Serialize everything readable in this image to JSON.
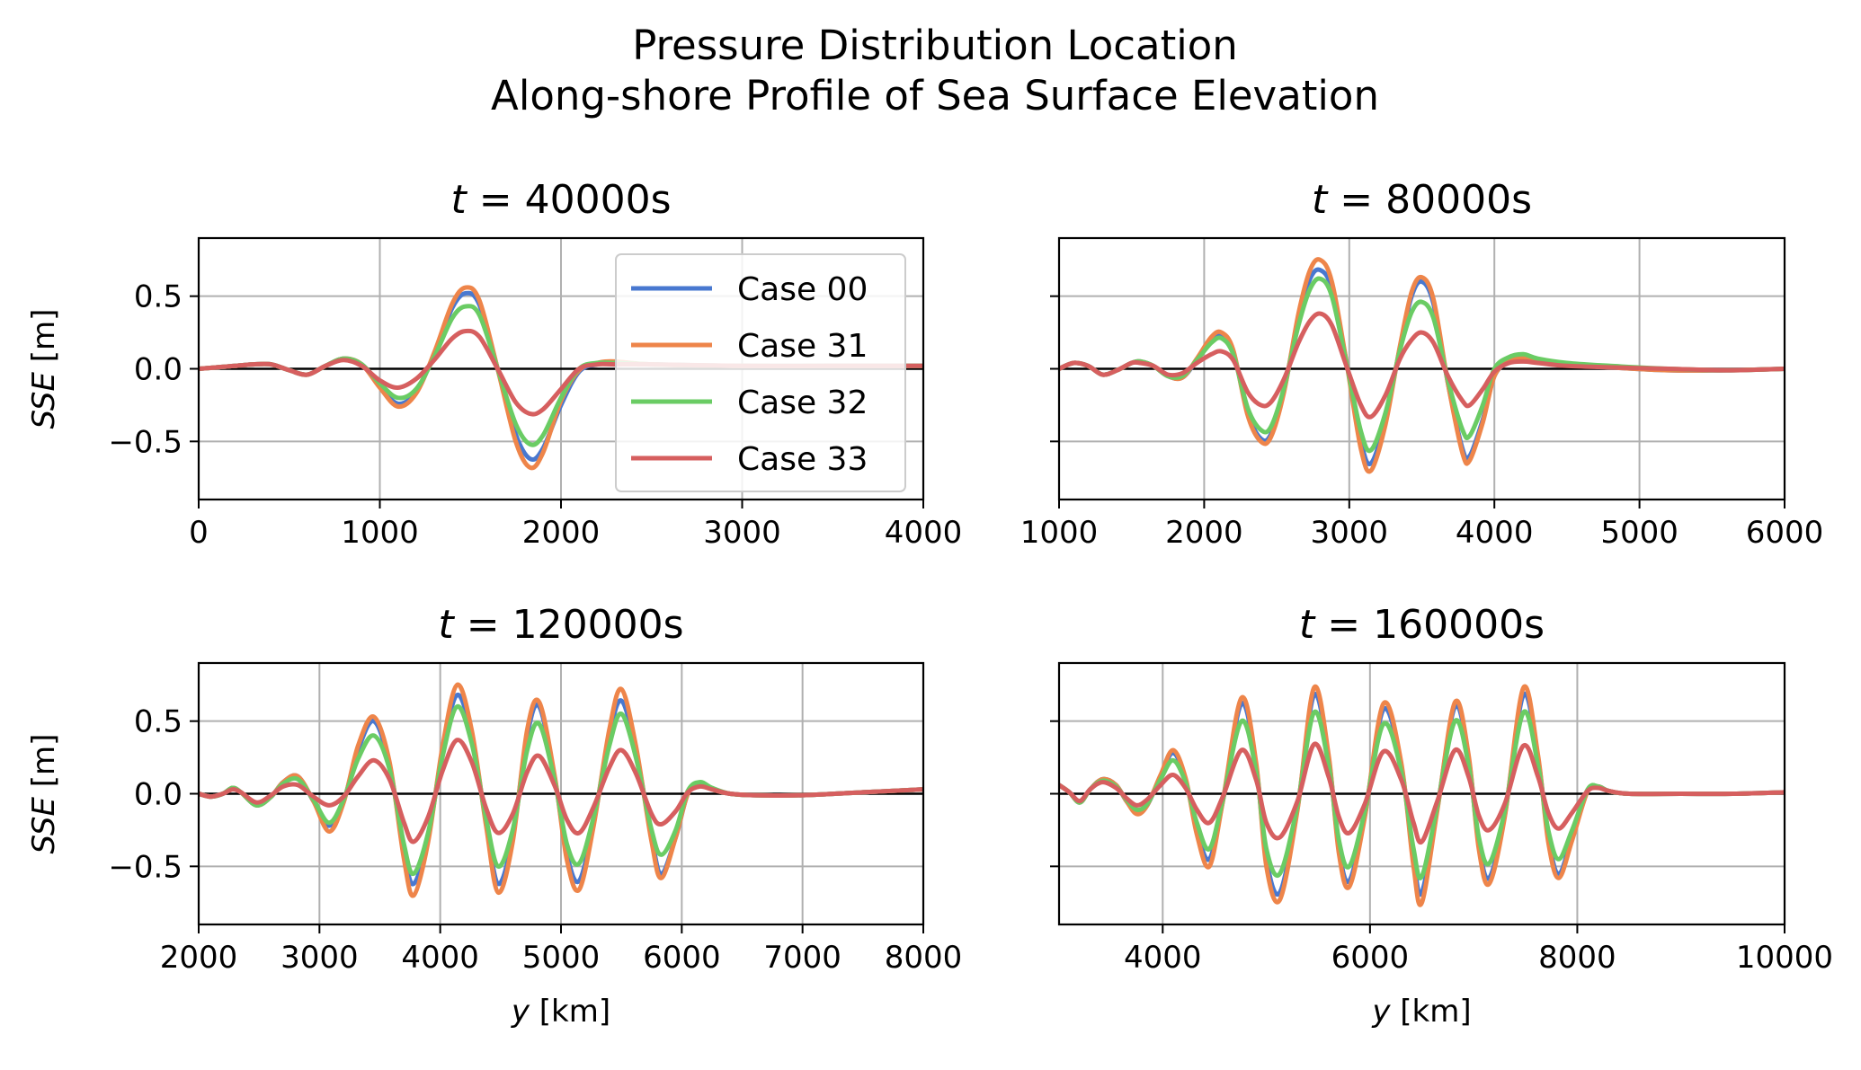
{
  "figure": {
    "title_line1": "Pressure Distribution Location",
    "title_line2": "Along-shore Profile of Sea Surface Elevation"
  },
  "legend": {
    "placement": "upper-right of first panel",
    "entries": [
      "Case 00",
      "Case 31",
      "Case 32",
      "Case 33"
    ]
  },
  "colors": {
    "Case 00": "#4878d0",
    "Case 31": "#ee854a",
    "Case 32": "#6acc64",
    "Case 33": "#d65f5f",
    "zero_line": "#000000",
    "grid": "#b0b0b0"
  },
  "chart_data": [
    {
      "type": "line",
      "title_prefix": "t",
      "title_value": "40000s",
      "xlabel_italic": "",
      "xlabel_unit": "",
      "ylabel_italic": "SSE",
      "ylabel_unit": "[m]",
      "xlim": [
        0,
        4000
      ],
      "ylim": [
        -0.9,
        0.9
      ],
      "xticks": [
        0,
        1000,
        2000,
        3000,
        4000
      ],
      "xtick_labels": [
        "0",
        "1000",
        "2000",
        "3000",
        "4000"
      ],
      "yticks": [
        0.5,
        0.0,
        -0.5
      ],
      "ytick_labels": [
        "0.5",
        "0.0",
        "−0.5"
      ],
      "show_ytick_labels": true,
      "grid": true,
      "x": [
        0,
        100,
        200,
        300,
        400,
        500,
        600,
        700,
        800,
        900,
        1000,
        1100,
        1200,
        1300,
        1400,
        1475,
        1550,
        1650,
        1750,
        1830,
        1900,
        2000,
        2100,
        2200,
        2300,
        2500,
        3000,
        3500,
        4000
      ],
      "series": [
        {
          "name": "Case 00",
          "values": [
            0.0,
            0.01,
            0.02,
            0.03,
            0.03,
            -0.01,
            -0.04,
            0.02,
            0.07,
            0.03,
            -0.12,
            -0.24,
            -0.16,
            0.1,
            0.42,
            0.52,
            0.44,
            0.0,
            -0.45,
            -0.62,
            -0.55,
            -0.25,
            -0.02,
            0.03,
            0.04,
            0.03,
            0.02,
            0.02,
            0.02
          ]
        },
        {
          "name": "Case 31",
          "values": [
            0.0,
            0.01,
            0.02,
            0.03,
            0.03,
            -0.01,
            -0.04,
            0.02,
            0.07,
            0.03,
            -0.13,
            -0.26,
            -0.17,
            0.11,
            0.45,
            0.56,
            0.47,
            0.0,
            -0.5,
            -0.68,
            -0.58,
            -0.22,
            -0.01,
            0.04,
            0.05,
            0.03,
            0.02,
            0.02,
            0.02
          ]
        },
        {
          "name": "Case 32",
          "values": [
            0.0,
            0.01,
            0.02,
            0.03,
            0.03,
            -0.01,
            -0.04,
            0.02,
            0.07,
            0.03,
            -0.1,
            -0.2,
            -0.14,
            0.08,
            0.35,
            0.43,
            0.37,
            0.0,
            -0.38,
            -0.52,
            -0.46,
            -0.2,
            0.0,
            0.04,
            0.04,
            0.03,
            0.02,
            0.02,
            0.02
          ]
        },
        {
          "name": "Case 33",
          "values": [
            0.0,
            0.01,
            0.02,
            0.03,
            0.03,
            -0.01,
            -0.04,
            0.02,
            0.06,
            0.02,
            -0.08,
            -0.13,
            -0.07,
            0.06,
            0.21,
            0.26,
            0.22,
            0.0,
            -0.23,
            -0.31,
            -0.28,
            -0.14,
            0.0,
            0.03,
            0.03,
            0.03,
            0.02,
            0.02,
            0.02
          ]
        }
      ]
    },
    {
      "type": "line",
      "title_prefix": "t",
      "title_value": "80000s",
      "xlabel_italic": "",
      "xlabel_unit": "",
      "ylabel_italic": "",
      "ylabel_unit": "",
      "xlim": [
        1000,
        6000
      ],
      "ylim": [
        -0.9,
        0.9
      ],
      "xticks": [
        1000,
        2000,
        3000,
        4000,
        5000,
        6000
      ],
      "xtick_labels": [
        "1000",
        "2000",
        "3000",
        "4000",
        "5000",
        "6000"
      ],
      "yticks": [
        0.5,
        0.0,
        -0.5
      ],
      "ytick_labels": [
        "0.5",
        "0.0",
        "−0.5"
      ],
      "show_ytick_labels": false,
      "grid": true,
      "x": [
        1000,
        1100,
        1200,
        1300,
        1400,
        1500,
        1560,
        1650,
        1750,
        1850,
        1950,
        2050,
        2120,
        2200,
        2300,
        2390,
        2460,
        2550,
        2650,
        2730,
        2800,
        2880,
        2980,
        3080,
        3150,
        3250,
        3350,
        3430,
        3500,
        3580,
        3680,
        3780,
        3830,
        3920,
        4000,
        4100,
        4200,
        4300,
        4500,
        4800,
        5200,
        5600,
        6000
      ],
      "series": [
        {
          "name": "Case 00",
          "values": [
            0.0,
            0.04,
            0.02,
            -0.04,
            -0.01,
            0.04,
            0.05,
            0.02,
            -0.05,
            -0.06,
            0.06,
            0.2,
            0.23,
            0.12,
            -0.3,
            -0.48,
            -0.45,
            -0.15,
            0.35,
            0.62,
            0.68,
            0.55,
            0.05,
            -0.5,
            -0.65,
            -0.35,
            0.15,
            0.5,
            0.6,
            0.45,
            -0.1,
            -0.55,
            -0.6,
            -0.35,
            -0.05,
            0.05,
            0.08,
            0.05,
            0.03,
            0.01,
            -0.01,
            -0.01,
            0.0
          ]
        },
        {
          "name": "Case 31",
          "values": [
            0.0,
            0.04,
            0.02,
            -0.04,
            -0.01,
            0.04,
            0.05,
            0.02,
            -0.05,
            -0.06,
            0.07,
            0.22,
            0.25,
            0.13,
            -0.32,
            -0.5,
            -0.47,
            -0.16,
            0.38,
            0.68,
            0.75,
            0.6,
            0.05,
            -0.55,
            -0.7,
            -0.38,
            0.16,
            0.53,
            0.63,
            0.48,
            -0.1,
            -0.58,
            -0.63,
            -0.37,
            -0.05,
            0.05,
            0.08,
            0.05,
            0.03,
            0.01,
            -0.01,
            -0.01,
            0.0
          ]
        },
        {
          "name": "Case 32",
          "values": [
            0.0,
            0.04,
            0.02,
            -0.04,
            -0.01,
            0.04,
            0.05,
            0.02,
            -0.05,
            -0.05,
            0.06,
            0.18,
            0.21,
            0.1,
            -0.27,
            -0.42,
            -0.4,
            -0.13,
            0.3,
            0.55,
            0.62,
            0.5,
            0.04,
            -0.43,
            -0.56,
            -0.3,
            0.13,
            0.39,
            0.46,
            0.35,
            -0.08,
            -0.42,
            -0.46,
            -0.25,
            0.0,
            0.08,
            0.1,
            0.07,
            0.04,
            0.02,
            0.0,
            -0.01,
            0.0
          ]
        },
        {
          "name": "Case 33",
          "values": [
            0.0,
            0.04,
            0.02,
            -0.04,
            -0.01,
            0.04,
            0.04,
            0.02,
            -0.04,
            -0.03,
            0.04,
            0.1,
            0.12,
            0.06,
            -0.16,
            -0.25,
            -0.23,
            -0.07,
            0.18,
            0.33,
            0.38,
            0.3,
            0.02,
            -0.25,
            -0.33,
            -0.18,
            0.07,
            0.2,
            0.25,
            0.18,
            -0.05,
            -0.22,
            -0.25,
            -0.14,
            -0.02,
            0.04,
            0.05,
            0.04,
            0.02,
            0.01,
            0.0,
            -0.01,
            0.0
          ]
        }
      ]
    },
    {
      "type": "line",
      "title_prefix": "t",
      "title_value": "120000s",
      "xlabel_italic": "y",
      "xlabel_unit": "[km]",
      "ylabel_italic": "SSE",
      "ylabel_unit": "[m]",
      "xlim": [
        2000,
        8000
      ],
      "ylim": [
        -0.9,
        0.9
      ],
      "xticks": [
        2000,
        3000,
        4000,
        5000,
        6000,
        7000,
        8000
      ],
      "xtick_labels": [
        "2000",
        "3000",
        "4000",
        "5000",
        "6000",
        "7000",
        "8000"
      ],
      "yticks": [
        0.5,
        0.0,
        -0.5
      ],
      "ytick_labels": [
        "0.5",
        "0.0",
        "−0.5"
      ],
      "show_ytick_labels": true,
      "grid": true,
      "x": [
        2000,
        2100,
        2200,
        2280,
        2350,
        2480,
        2600,
        2700,
        2820,
        2950,
        3080,
        3200,
        3320,
        3450,
        3580,
        3700,
        3780,
        3900,
        4020,
        4140,
        4260,
        4380,
        4480,
        4600,
        4720,
        4820,
        4950,
        5050,
        5150,
        5270,
        5400,
        5500,
        5620,
        5750,
        5830,
        5950,
        6050,
        6150,
        6250,
        6400,
        6600,
        7000,
        7500,
        8000
      ],
      "series": [
        {
          "name": "Case 00",
          "values": [
            0.0,
            -0.02,
            0.0,
            0.04,
            0.01,
            -0.08,
            -0.02,
            0.08,
            0.12,
            -0.05,
            -0.22,
            -0.05,
            0.3,
            0.5,
            0.2,
            -0.4,
            -0.62,
            -0.3,
            0.3,
            0.68,
            0.4,
            -0.2,
            -0.62,
            -0.3,
            0.4,
            0.6,
            0.1,
            -0.42,
            -0.6,
            -0.2,
            0.4,
            0.64,
            0.3,
            -0.3,
            -0.55,
            -0.3,
            0.0,
            0.06,
            0.03,
            0.0,
            -0.01,
            -0.01,
            0.01,
            0.03
          ]
        },
        {
          "name": "Case 31",
          "values": [
            0.0,
            -0.02,
            0.0,
            0.04,
            0.01,
            -0.08,
            -0.02,
            0.08,
            0.12,
            -0.05,
            -0.26,
            -0.06,
            0.33,
            0.53,
            0.22,
            -0.45,
            -0.7,
            -0.33,
            0.33,
            0.75,
            0.44,
            -0.22,
            -0.68,
            -0.33,
            0.44,
            0.63,
            0.11,
            -0.46,
            -0.66,
            -0.22,
            0.44,
            0.72,
            0.33,
            -0.33,
            -0.58,
            -0.3,
            0.0,
            0.07,
            0.03,
            0.0,
            -0.01,
            -0.01,
            0.01,
            0.03
          ]
        },
        {
          "name": "Case 32",
          "values": [
            0.0,
            -0.02,
            0.0,
            0.04,
            0.01,
            -0.08,
            -0.02,
            0.07,
            0.1,
            -0.04,
            -0.2,
            -0.04,
            0.24,
            0.4,
            0.17,
            -0.35,
            -0.55,
            -0.27,
            0.26,
            0.6,
            0.35,
            -0.17,
            -0.5,
            -0.25,
            0.3,
            0.48,
            0.08,
            -0.35,
            -0.48,
            -0.16,
            0.33,
            0.55,
            0.25,
            -0.25,
            -0.42,
            -0.25,
            0.02,
            0.08,
            0.04,
            0.0,
            -0.01,
            -0.01,
            0.01,
            0.03
          ]
        },
        {
          "name": "Case 33",
          "values": [
            0.0,
            -0.02,
            0.0,
            0.03,
            0.01,
            -0.06,
            -0.01,
            0.05,
            0.06,
            -0.02,
            -0.08,
            -0.02,
            0.12,
            0.23,
            0.1,
            -0.2,
            -0.33,
            -0.16,
            0.16,
            0.37,
            0.22,
            -0.1,
            -0.27,
            -0.14,
            0.15,
            0.26,
            0.05,
            -0.18,
            -0.27,
            -0.09,
            0.18,
            0.3,
            0.14,
            -0.14,
            -0.21,
            -0.12,
            0.01,
            0.05,
            0.03,
            0.0,
            -0.01,
            -0.01,
            0.01,
            0.03
          ]
        }
      ]
    },
    {
      "type": "line",
      "title_prefix": "t",
      "title_value": "160000s",
      "xlabel_italic": "y",
      "xlabel_unit": "[km]",
      "ylabel_italic": "",
      "ylabel_unit": "",
      "xlim": [
        3000,
        10000
      ],
      "ylim": [
        -0.9,
        0.9
      ],
      "xticks": [
        4000,
        6000,
        8000,
        10000
      ],
      "xtick_labels": [
        "4000",
        "6000",
        "8000",
        "10000"
      ],
      "yticks": [
        0.5,
        0.0,
        -0.5
      ],
      "ytick_labels": [
        "0.5",
        "0.0",
        "−0.5"
      ],
      "show_ytick_labels": false,
      "grid": true,
      "x": [
        3000,
        3100,
        3200,
        3300,
        3420,
        3550,
        3650,
        3750,
        3850,
        3980,
        4100,
        4220,
        4330,
        4450,
        4580,
        4760,
        4900,
        5000,
        5130,
        5300,
        5460,
        5600,
        5700,
        5800,
        5950,
        6130,
        6300,
        6420,
        6500,
        6650,
        6820,
        6950,
        7050,
        7150,
        7300,
        7480,
        7620,
        7720,
        7820,
        7950,
        8100,
        8200,
        8300,
        8500,
        9000,
        9500,
        10000
      ],
      "series": [
        {
          "name": "Case 00",
          "values": [
            0.06,
            0.01,
            -0.06,
            0.03,
            0.1,
            0.06,
            -0.05,
            -0.13,
            -0.08,
            0.12,
            0.28,
            0.1,
            -0.25,
            -0.45,
            -0.05,
            0.62,
            0.2,
            -0.45,
            -0.68,
            -0.1,
            0.68,
            0.25,
            -0.38,
            -0.6,
            -0.15,
            0.58,
            0.2,
            -0.45,
            -0.68,
            -0.1,
            0.6,
            0.25,
            -0.35,
            -0.58,
            -0.15,
            0.68,
            0.25,
            -0.3,
            -0.55,
            -0.3,
            0.02,
            0.05,
            0.02,
            0.0,
            0.0,
            0.0,
            0.01
          ]
        },
        {
          "name": "Case 31",
          "values": [
            0.06,
            0.01,
            -0.06,
            0.03,
            0.1,
            0.06,
            -0.05,
            -0.14,
            -0.08,
            0.13,
            0.3,
            0.11,
            -0.28,
            -0.5,
            -0.05,
            0.66,
            0.22,
            -0.5,
            -0.73,
            -0.11,
            0.73,
            0.27,
            -0.41,
            -0.64,
            -0.16,
            0.62,
            0.22,
            -0.5,
            -0.75,
            -0.11,
            0.63,
            0.27,
            -0.38,
            -0.62,
            -0.16,
            0.73,
            0.27,
            -0.33,
            -0.58,
            -0.32,
            0.02,
            0.05,
            0.02,
            0.0,
            0.0,
            0.0,
            0.01
          ]
        },
        {
          "name": "Case 32",
          "values": [
            0.06,
            0.01,
            -0.06,
            0.03,
            0.09,
            0.05,
            -0.04,
            -0.11,
            -0.07,
            0.1,
            0.23,
            0.08,
            -0.2,
            -0.38,
            -0.04,
            0.5,
            0.16,
            -0.38,
            -0.55,
            -0.08,
            0.56,
            0.2,
            -0.32,
            -0.5,
            -0.12,
            0.48,
            0.16,
            -0.38,
            -0.57,
            -0.08,
            0.5,
            0.2,
            -0.3,
            -0.48,
            -0.12,
            0.56,
            0.2,
            -0.25,
            -0.45,
            -0.25,
            0.03,
            0.05,
            0.02,
            0.0,
            0.0,
            0.0,
            0.01
          ]
        },
        {
          "name": "Case 33",
          "values": [
            0.06,
            0.01,
            -0.05,
            0.03,
            0.08,
            0.04,
            -0.03,
            -0.08,
            -0.04,
            0.06,
            0.13,
            0.04,
            -0.11,
            -0.2,
            -0.02,
            0.3,
            0.1,
            -0.2,
            -0.3,
            -0.05,
            0.34,
            0.12,
            -0.16,
            -0.27,
            -0.07,
            0.29,
            0.1,
            -0.2,
            -0.33,
            -0.05,
            0.3,
            0.12,
            -0.15,
            -0.25,
            -0.07,
            0.33,
            0.12,
            -0.13,
            -0.24,
            -0.13,
            0.02,
            0.04,
            0.02,
            0.0,
            0.0,
            0.0,
            0.01
          ]
        }
      ]
    }
  ]
}
